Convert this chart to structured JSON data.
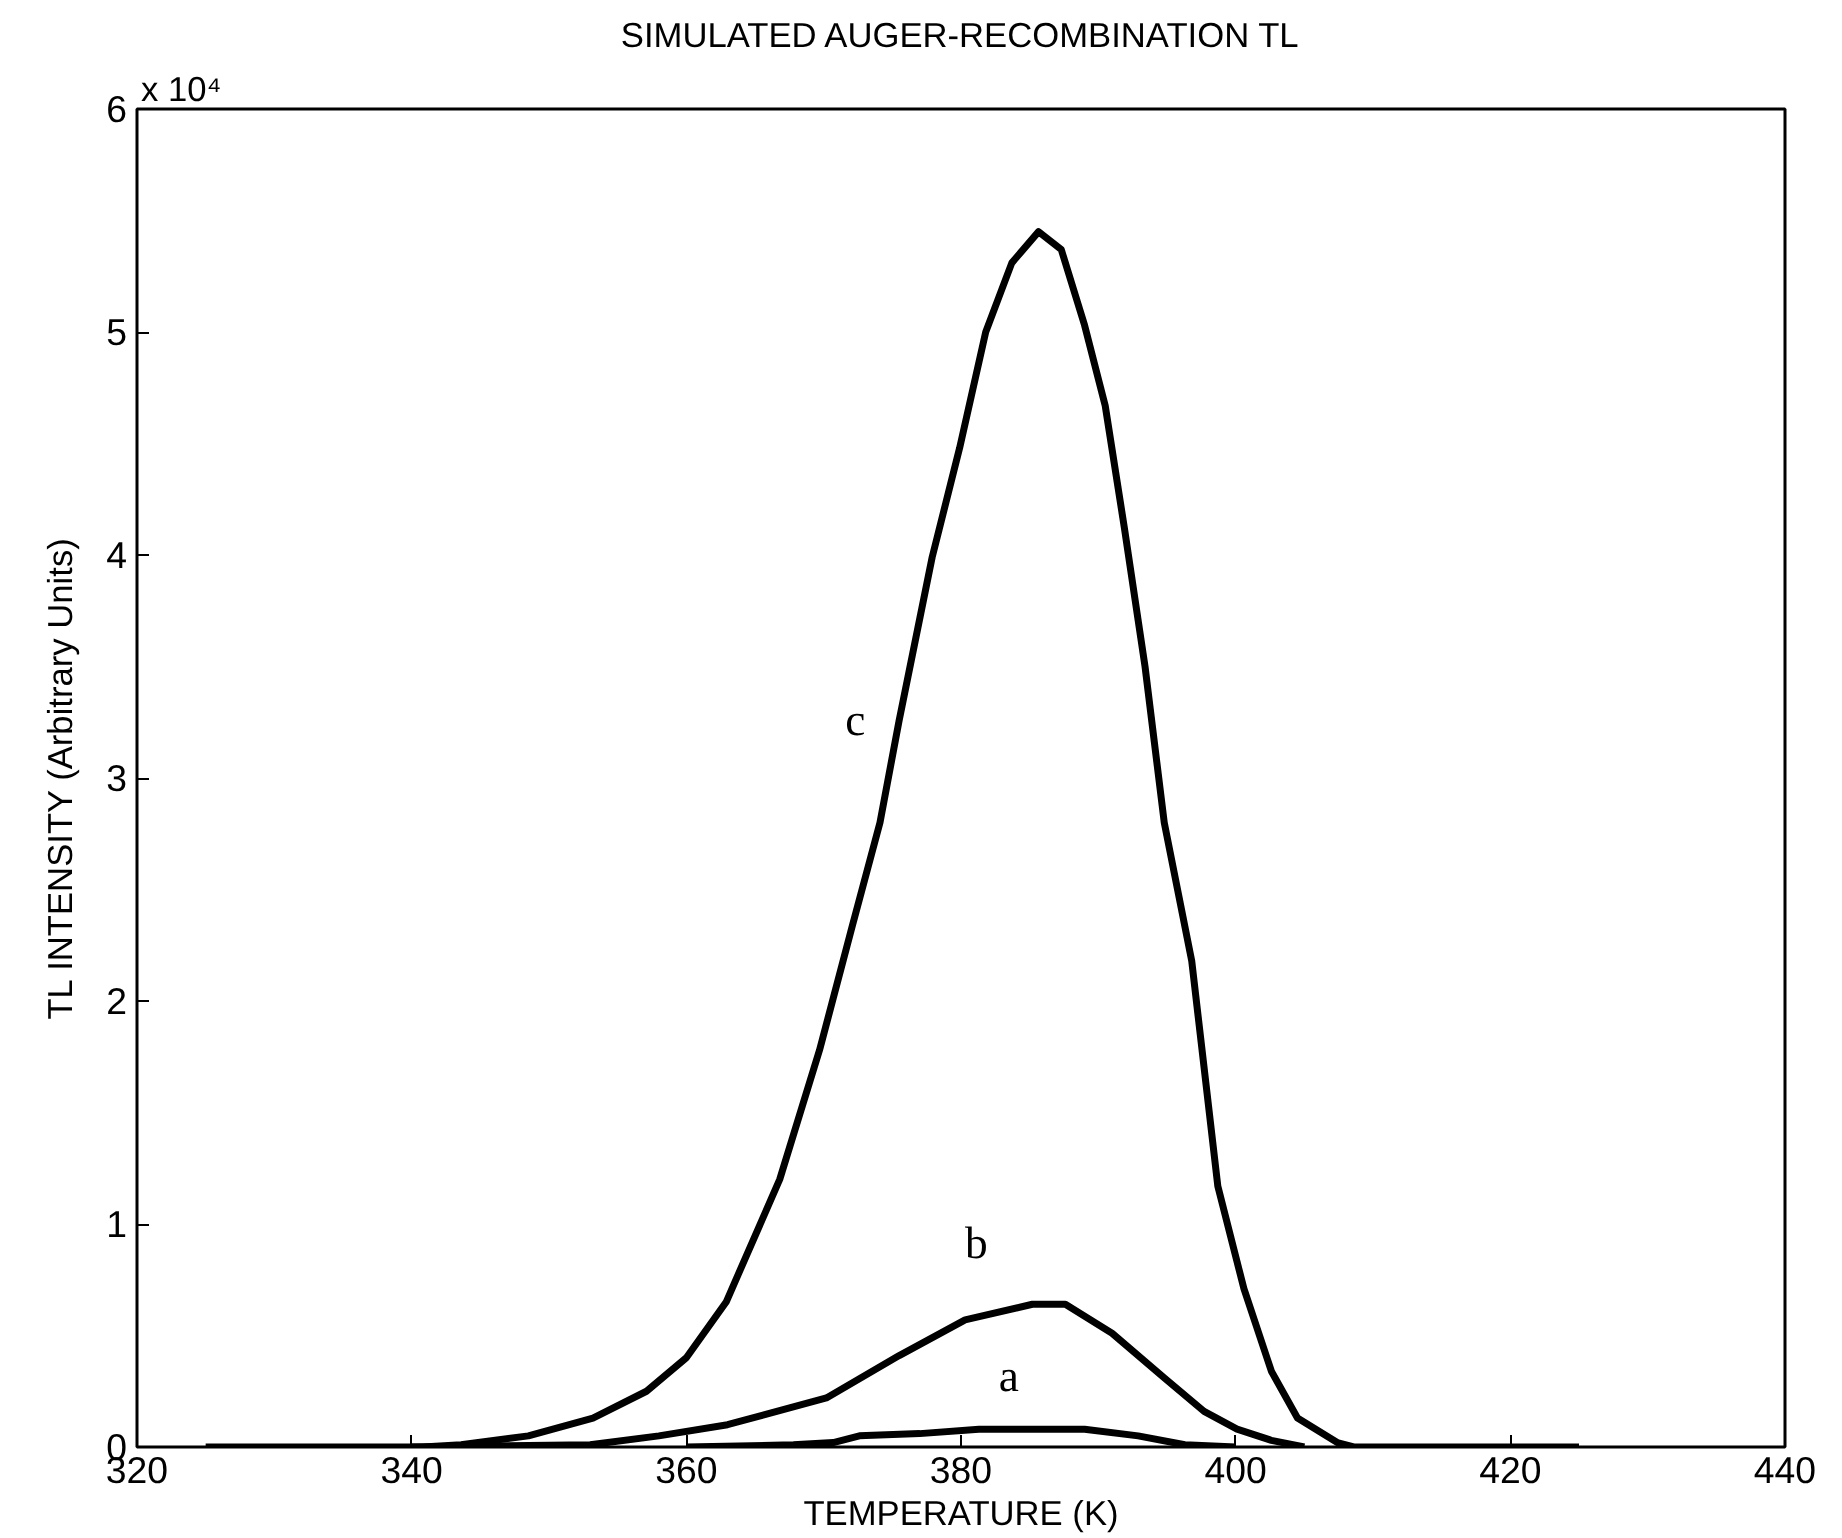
{
  "chart_data": {
    "type": "line",
    "title": "SIMULATED AUGER-RECOMBINATION TL",
    "xlabel": "TEMPERATURE (K)",
    "ylabel": "TL INTENSITY (Arbitrary Units)",
    "xlim": [
      320,
      440
    ],
    "xticks": [
      320,
      340,
      360,
      380,
      400,
      420,
      440
    ],
    "ylim": [
      0,
      6
    ],
    "yticks": [
      0,
      1,
      2,
      3,
      4,
      5,
      6
    ],
    "grid": false,
    "marker": "none",
    "line_style": "solid",
    "series": [
      {
        "name": "c",
        "color": "#000000",
        "x": [
          325,
          340.8,
          343.6,
          348.5,
          353.2,
          357.1,
          360.0,
          362.9,
          366.8,
          369.7,
          372.1,
          374.1,
          375.5,
          377.9,
          379.9,
          381.8,
          383.7,
          385.65,
          387.3,
          389.0,
          390.5,
          391.9,
          393.4,
          394.8,
          396.8,
          398.7,
          400.6,
          402.6,
          404.5,
          407.4,
          408.6,
          425
        ],
        "values": [
          0,
          0,
          0.01,
          0.05,
          0.13,
          0.25,
          0.4,
          0.65,
          1.2,
          1.78,
          2.34,
          2.8,
          3.26,
          3.99,
          4.48,
          5.0,
          5.31,
          5.45,
          5.37,
          5.03,
          4.67,
          4.12,
          3.5,
          2.8,
          2.18,
          1.17,
          0.71,
          0.34,
          0.13,
          0.02,
          0,
          0
        ]
      },
      {
        "name": "b",
        "color": "#000000",
        "x": [
          340,
          353,
          358,
          363.0,
          370.2,
          375.5,
          380.3,
          385.2,
          387.6,
          391.0,
          394.8,
          397.7,
          400.1,
          402.6,
          405
        ],
        "values": [
          0,
          0.01,
          0.05,
          0.1,
          0.22,
          0.41,
          0.57,
          0.64,
          0.64,
          0.51,
          0.31,
          0.16,
          0.08,
          0.03,
          0
        ]
      },
      {
        "name": "a",
        "color": "#000000",
        "x": [
          360,
          367.8,
          370.7,
          372.6,
          377.0,
          381.3,
          389.0,
          392.9,
          396.3,
          400
        ],
        "values": [
          0,
          0.01,
          0.02,
          0.05,
          0.06,
          0.08,
          0.08,
          0.05,
          0.01,
          0
        ]
      }
    ],
    "annotations": [
      "x 10⁴"
    ]
  }
}
